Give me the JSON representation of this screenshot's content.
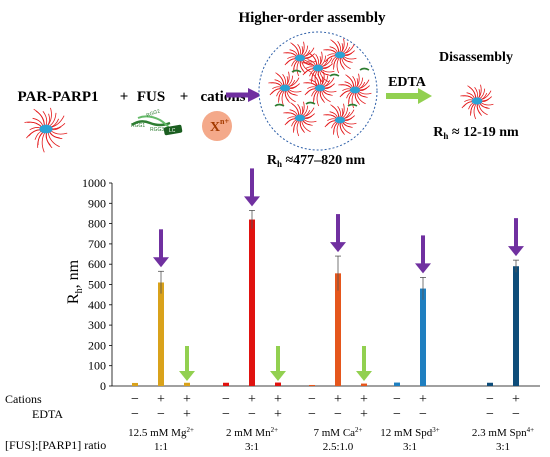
{
  "schematic": {
    "title": "Higher-order assembly",
    "par_parp1_label": "PAR-PARP1",
    "plus1": "+",
    "fus_label": "FUS",
    "plus2": "+",
    "cations_label": "cations",
    "cation_symbol": "X",
    "cation_charge": "n+",
    "fus_domains": [
      "RGG1",
      "RGG2",
      "RGG3",
      "LC"
    ],
    "rh_assembly_prefix": "R",
    "rh_assembly_sub": "h",
    "rh_assembly_value": " ≈477–820 nm",
    "edta_label": "EDTA",
    "disassembly_label": "Disassembly",
    "rh_disassembly_prefix": "R",
    "rh_disassembly_sub": "h",
    "rh_disassembly_value": " ≈ 12-19 nm"
  },
  "row_labels": {
    "cations": "Cations",
    "edta": "EDTA",
    "ratio": "[FUS]:[PARP1] ratio"
  },
  "colors": {
    "purple_arrow": "#7030a0",
    "green_arrow": "#92d050",
    "assembly_arrow": "#7030a0",
    "edta_arrow": "#92d050",
    "par_red": "#e31a1c",
    "parp1_blue": "#29a3d6",
    "fus_green": "#2e7d32",
    "cation_fill": "#f4a98a"
  },
  "chart_data": {
    "type": "bar",
    "ylabel_main": "R",
    "ylabel_sub": "h",
    "ylabel_unit": ", nm",
    "ylim": [
      0,
      1000
    ],
    "yticks": [
      0,
      100,
      200,
      300,
      400,
      500,
      600,
      700,
      800,
      900,
      1000
    ],
    "grid": false,
    "groups": [
      {
        "condition": "12.5 mM Mg",
        "condition_sup": "2+",
        "ratio": "1:1",
        "color": "#d9a21b",
        "bars": [
          {
            "cations": "−",
            "edta": "−",
            "value": 15,
            "err": 0,
            "arrow": null
          },
          {
            "cations": "+",
            "edta": "−",
            "value": 510,
            "err": 55,
            "arrow": "purple"
          },
          {
            "cations": "+",
            "edta": "+",
            "value": 16,
            "err": 0,
            "arrow": "green"
          }
        ]
      },
      {
        "condition": "2 mM Mn",
        "condition_sup": "2+",
        "ratio": "3:1",
        "color": "#e0120f",
        "bars": [
          {
            "cations": "−",
            "edta": "−",
            "value": 16,
            "err": 0,
            "arrow": null
          },
          {
            "cations": "+",
            "edta": "−",
            "value": 820,
            "err": 45,
            "arrow": "purple"
          },
          {
            "cations": "+",
            "edta": "+",
            "value": 17,
            "err": 0,
            "arrow": "green"
          }
        ]
      },
      {
        "condition": "7 mM Ca",
        "condition_sup": "2+",
        "ratio": "2.5:1.0",
        "color": "#e5561c",
        "bars": [
          {
            "cations": "−",
            "edta": "−",
            "value": 5,
            "err": 0,
            "arrow": null
          },
          {
            "cations": "+",
            "edta": "−",
            "value": 555,
            "err": 85,
            "arrow": "purple"
          },
          {
            "cations": "+",
            "edta": "+",
            "value": 12,
            "err": 0,
            "arrow": "green"
          }
        ]
      },
      {
        "condition": "12 mM Spd",
        "condition_sup": "3+",
        "ratio": "3:1",
        "color": "#1f7fc0",
        "bars": [
          {
            "cations": "−",
            "edta": "−",
            "value": 17,
            "err": 0,
            "arrow": null
          },
          {
            "cations": "+",
            "edta": "−",
            "value": 480,
            "err": 55,
            "arrow": "purple"
          }
        ]
      },
      {
        "condition": "2.3 mM Spn",
        "condition_sup": "4+",
        "ratio": "3:1",
        "color": "#0e4d7a",
        "bars": [
          {
            "cations": "−",
            "edta": "−",
            "value": 16,
            "err": 0,
            "arrow": null
          },
          {
            "cations": "+",
            "edta": "−",
            "value": 590,
            "err": 30,
            "arrow": "purple"
          }
        ]
      }
    ]
  }
}
